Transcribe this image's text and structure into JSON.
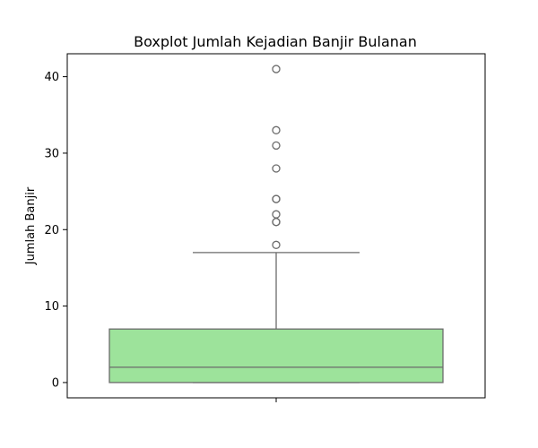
{
  "chart_data": {
    "type": "box",
    "title": "Boxplot Jumlah Kejadian Banjir Bulanan",
    "xlabel": "",
    "ylabel": "Jumlah Banjir",
    "ylim": [
      -2,
      43
    ],
    "yticks": [
      0,
      10,
      20,
      30,
      40
    ],
    "grid": false,
    "box": {
      "min": 0,
      "q1": 0,
      "median": 2,
      "q3": 7,
      "whisker_low": 0,
      "whisker_high": 17,
      "outliers": [
        18,
        21,
        21,
        22,
        24,
        24,
        28,
        31,
        33,
        41
      ]
    },
    "colors": {
      "box_fill": "#9de39b",
      "line": "#6b6b6b",
      "outlier_stroke": "#6b6b6b"
    }
  }
}
